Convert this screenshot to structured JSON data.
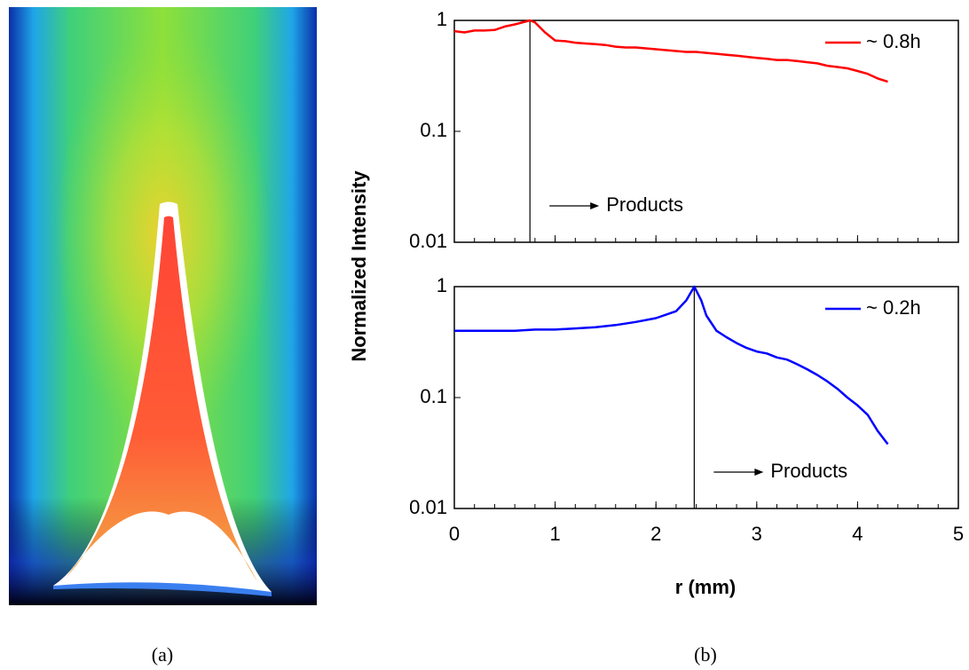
{
  "panel_labels": [
    "(a)",
    "(b)"
  ],
  "chart_data": [
    {
      "type": "line",
      "y_label": "Normalized Intensity",
      "log_y": true,
      "xlim": [
        0,
        5
      ],
      "xticks": [
        0,
        1,
        2,
        3,
        4,
        5
      ],
      "show_xtick_labels": false,
      "x_minor_step": 0.2,
      "ylim": [
        0.01,
        1
      ],
      "yticks": [
        0.01,
        0.1,
        1
      ],
      "legend": "upper right",
      "vline_x": 0.75,
      "annotation": "Products",
      "series": [
        {
          "name": "~ 0.8h",
          "color": "#ff0000",
          "x": [
            0,
            0.1,
            0.2,
            0.3,
            0.4,
            0.5,
            0.6,
            0.75,
            0.8,
            0.9,
            1.0,
            1.1,
            1.2,
            1.3,
            1.4,
            1.5,
            1.6,
            1.7,
            1.8,
            1.9,
            2.0,
            2.1,
            2.2,
            2.3,
            2.4,
            2.5,
            2.6,
            2.7,
            2.8,
            2.9,
            3.0,
            3.1,
            3.2,
            3.3,
            3.4,
            3.5,
            3.6,
            3.7,
            3.8,
            3.9,
            4.0,
            4.1,
            4.2,
            4.3
          ],
          "values": [
            0.8,
            0.78,
            0.81,
            0.81,
            0.82,
            0.88,
            0.92,
            1.0,
            0.96,
            0.78,
            0.66,
            0.65,
            0.63,
            0.62,
            0.61,
            0.6,
            0.58,
            0.57,
            0.57,
            0.56,
            0.55,
            0.54,
            0.53,
            0.52,
            0.52,
            0.51,
            0.5,
            0.49,
            0.48,
            0.47,
            0.46,
            0.45,
            0.44,
            0.44,
            0.43,
            0.42,
            0.41,
            0.39,
            0.38,
            0.37,
            0.35,
            0.33,
            0.3,
            0.28
          ]
        }
      ]
    },
    {
      "type": "line",
      "x_label": "r (mm)",
      "log_y": true,
      "xlim": [
        0,
        5
      ],
      "xticks": [
        0,
        1,
        2,
        3,
        4,
        5
      ],
      "show_xtick_labels": true,
      "x_minor_step": 0.2,
      "ylim": [
        0.01,
        1
      ],
      "yticks": [
        0.01,
        0.1,
        1
      ],
      "legend": "upper right",
      "vline_x": 2.38,
      "annotation": "Products",
      "series": [
        {
          "name": "~ 0.2h",
          "color": "#0000ff",
          "x": [
            0,
            0.2,
            0.4,
            0.6,
            0.8,
            1.0,
            1.2,
            1.4,
            1.6,
            1.8,
            2.0,
            2.2,
            2.3,
            2.38,
            2.45,
            2.5,
            2.6,
            2.7,
            2.8,
            2.9,
            3.0,
            3.1,
            3.2,
            3.3,
            3.4,
            3.5,
            3.6,
            3.7,
            3.8,
            3.9,
            4.0,
            4.1,
            4.2,
            4.3
          ],
          "values": [
            0.4,
            0.4,
            0.4,
            0.4,
            0.41,
            0.41,
            0.42,
            0.43,
            0.45,
            0.48,
            0.52,
            0.6,
            0.75,
            1.0,
            0.75,
            0.55,
            0.4,
            0.35,
            0.31,
            0.28,
            0.26,
            0.25,
            0.23,
            0.22,
            0.2,
            0.18,
            0.16,
            0.14,
            0.12,
            0.1,
            0.085,
            0.07,
            0.05,
            0.038
          ]
        }
      ]
    }
  ]
}
